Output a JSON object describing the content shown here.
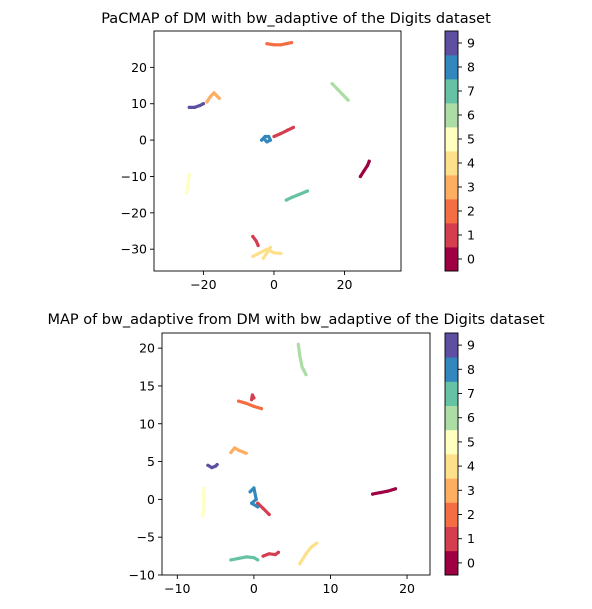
{
  "chart_data": [
    {
      "type": "scatter",
      "title": "PaCMAP of DM with bw_adaptive of the Digits dataset",
      "xlabel": "",
      "ylabel": "",
      "xlim": [
        -34,
        36
      ],
      "ylim": [
        -36,
        30
      ],
      "xticks": [
        -20,
        0,
        20
      ],
      "yticks": [
        -30,
        -20,
        -10,
        0,
        10,
        20
      ],
      "grid": false,
      "colorbar": {
        "labels": [
          "0",
          "1",
          "2",
          "3",
          "4",
          "5",
          "6",
          "7",
          "8",
          "9"
        ],
        "colormap": "Spectral"
      },
      "clusters": [
        {
          "label": "0",
          "color": "#9e0142",
          "points": [
            [
              24.5,
              -10
            ],
            [
              25.5,
              -8.5
            ],
            [
              26.5,
              -7
            ],
            [
              27,
              -5.8
            ]
          ]
        },
        {
          "label": "1",
          "color": "#d53e4f",
          "points": [
            [
              -6,
              -26.5
            ],
            [
              -5,
              -27.8
            ],
            [
              -4.5,
              -29
            ]
          ]
        },
        {
          "label": "1",
          "color": "#d53e4f",
          "points": [
            [
              0,
              1
            ],
            [
              2,
              1.8
            ],
            [
              4,
              2.8
            ],
            [
              5.5,
              3.5
            ]
          ]
        },
        {
          "label": "2",
          "color": "#f46d43",
          "points": [
            [
              -2,
              26.5
            ],
            [
              0,
              26.2
            ],
            [
              2,
              26.2
            ],
            [
              3.5,
              26.5
            ],
            [
              5,
              26.8
            ]
          ]
        },
        {
          "label": "3",
          "color": "#fdae61",
          "points": [
            [
              -19,
              10.5
            ],
            [
              -18,
              12
            ],
            [
              -17,
              13
            ],
            [
              -16,
              12
            ],
            [
              -15.5,
              11.5
            ]
          ]
        },
        {
          "label": "4",
          "color": "#fee08b",
          "points": [
            [
              -6,
              -32
            ],
            [
              -4,
              -31
            ],
            [
              -2,
              -30
            ],
            [
              0,
              -31
            ],
            [
              2,
              -31.2
            ]
          ]
        },
        {
          "label": "4",
          "color": "#fee08b",
          "points": [
            [
              -3,
              -32.5
            ],
            [
              -2,
              -31
            ],
            [
              -1,
              -29.5
            ]
          ]
        },
        {
          "label": "5",
          "color": "#ffffbf",
          "points": [
            [
              -24,
              -9.5
            ],
            [
              -24.2,
              -11
            ],
            [
              -24.5,
              -13
            ],
            [
              -24.8,
              -14.5
            ]
          ]
        },
        {
          "label": "6",
          "color": "#abdda4",
          "points": [
            [
              16.5,
              15.5
            ],
            [
              18,
              14
            ],
            [
              19.5,
              12.5
            ],
            [
              21,
              11
            ]
          ]
        },
        {
          "label": "7",
          "color": "#66c2a5",
          "points": [
            [
              3.5,
              -16.5
            ],
            [
              5,
              -15.8
            ],
            [
              7,
              -15
            ],
            [
              9.5,
              -14
            ]
          ]
        },
        {
          "label": "8",
          "color": "#3288bd",
          "points": [
            [
              -3.5,
              0
            ],
            [
              -2.5,
              1
            ],
            [
              -1.5,
              1
            ],
            [
              -1,
              0
            ],
            [
              -2,
              -0.5
            ],
            [
              -3,
              0.5
            ]
          ]
        },
        {
          "label": "9",
          "color": "#5e4fa2",
          "points": [
            [
              -24,
              9
            ],
            [
              -22.5,
              9
            ],
            [
              -21,
              9.5
            ],
            [
              -20,
              10
            ]
          ]
        }
      ]
    },
    {
      "type": "scatter",
      "title": "MAP of bw_adaptive from DM with bw_adaptive of the Digits dataset",
      "xlabel": "",
      "ylabel": "",
      "xlim": [
        -12,
        23
      ],
      "ylim": [
        -10,
        22
      ],
      "xticks": [
        -10,
        0,
        10,
        20
      ],
      "yticks": [
        -10,
        -5,
        0,
        5,
        10,
        15,
        20
      ],
      "grid": false,
      "colorbar": {
        "labels": [
          "0",
          "1",
          "2",
          "3",
          "4",
          "5",
          "6",
          "7",
          "8",
          "9"
        ],
        "colormap": "Spectral"
      },
      "clusters": [
        {
          "label": "0",
          "color": "#9e0142",
          "points": [
            [
              15.5,
              0.7
            ],
            [
              16.5,
              0.9
            ],
            [
              17.5,
              1.1
            ],
            [
              18.5,
              1.4
            ]
          ]
        },
        {
          "label": "1",
          "color": "#d53e4f",
          "points": [
            [
              -0.3,
              13.2
            ],
            [
              -0.2,
              13.8
            ],
            [
              0,
              13.4
            ]
          ]
        },
        {
          "label": "1",
          "color": "#d53e4f",
          "points": [
            [
              1.2,
              -7.5
            ],
            [
              2,
              -7.2
            ],
            [
              2.8,
              -7.3
            ],
            [
              3.2,
              -7
            ]
          ]
        },
        {
          "label": "1",
          "color": "#d53e4f",
          "points": [
            [
              0.5,
              -0.5
            ],
            [
              1.2,
              -1.2
            ],
            [
              2,
              -2
            ]
          ]
        },
        {
          "label": "2",
          "color": "#f46d43",
          "points": [
            [
              -2,
              13
            ],
            [
              -1,
              12.7
            ],
            [
              0,
              12.3
            ],
            [
              1,
              12
            ]
          ]
        },
        {
          "label": "3",
          "color": "#fdae61",
          "points": [
            [
              -3,
              6.2
            ],
            [
              -2.5,
              6.8
            ],
            [
              -2,
              6.5
            ],
            [
              -1.5,
              6.3
            ],
            [
              -1,
              6.1
            ]
          ]
        },
        {
          "label": "4",
          "color": "#fee08b",
          "points": [
            [
              6,
              -8.5
            ],
            [
              6.8,
              -7.2
            ],
            [
              7.5,
              -6.3
            ],
            [
              8.2,
              -5.8
            ]
          ]
        },
        {
          "label": "5",
          "color": "#ffffbf",
          "points": [
            [
              -6.5,
              1.5
            ],
            [
              -6.6,
              0.5
            ],
            [
              -6.5,
              -1
            ],
            [
              -6.7,
              -2.2
            ]
          ]
        },
        {
          "label": "6",
          "color": "#abdda4",
          "points": [
            [
              5.8,
              20.5
            ],
            [
              6,
              19
            ],
            [
              6.3,
              17.5
            ],
            [
              6.8,
              16.5
            ]
          ]
        },
        {
          "label": "7",
          "color": "#66c2a5",
          "points": [
            [
              -3,
              -8
            ],
            [
              -2,
              -7.8
            ],
            [
              -1,
              -7.6
            ],
            [
              0,
              -7.7
            ],
            [
              0.5,
              -8
            ]
          ]
        },
        {
          "label": "8",
          "color": "#3288bd",
          "points": [
            [
              -0.5,
              1
            ],
            [
              0,
              1.5
            ],
            [
              0.3,
              0
            ],
            [
              -0.3,
              -0.5
            ],
            [
              0.5,
              -1
            ]
          ]
        },
        {
          "label": "9",
          "color": "#5e4fa2",
          "points": [
            [
              -6,
              4.5
            ],
            [
              -5.5,
              4.2
            ],
            [
              -5,
              4.4
            ],
            [
              -4.8,
              4.6
            ]
          ]
        }
      ]
    }
  ]
}
